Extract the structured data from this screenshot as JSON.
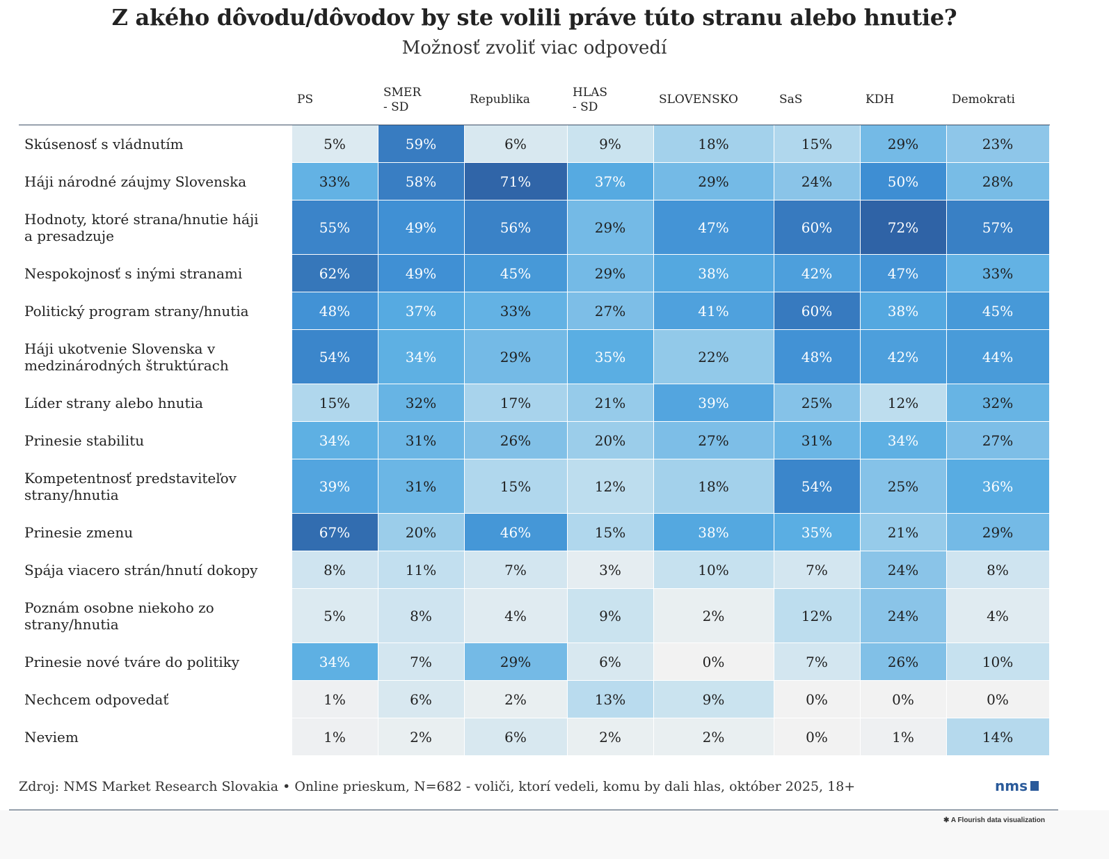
{
  "title": "Z akého dôvodu/dôvodov by ste volili práve túto stranu alebo hnutie?",
  "subtitle": "Možnosť zvoliť viac odpovedí",
  "chart_data": {
    "type": "heatmap",
    "title": "Z akého dôvodu/dôvodov by ste volili práve túto stranu alebo hnutie?",
    "subtitle": "Možnosť zvoliť viac odpovedí",
    "value_suffix": "%",
    "columns": [
      "PS",
      "SMER - SD",
      "Republika",
      "HLAS - SD",
      "SLOVENSKO",
      "SaS",
      "KDH",
      "Demokrati"
    ],
    "rows": [
      {
        "label": "Skúsenosť s vládnutím",
        "values": [
          5,
          59,
          6,
          9,
          18,
          15,
          29,
          23
        ]
      },
      {
        "label": "Háji národné záujmy Slovenska",
        "values": [
          33,
          58,
          71,
          37,
          29,
          24,
          50,
          28
        ]
      },
      {
        "label": "Hodnoty, ktoré strana/hnutie háji a presadzuje",
        "values": [
          55,
          49,
          56,
          29,
          47,
          60,
          72,
          57
        ]
      },
      {
        "label": "Nespokojnosť s inými stranami",
        "values": [
          62,
          49,
          45,
          29,
          38,
          42,
          47,
          33
        ]
      },
      {
        "label": "Politický program strany/hnutia",
        "values": [
          48,
          37,
          33,
          27,
          41,
          60,
          38,
          45
        ]
      },
      {
        "label": "Háji ukotvenie Slovenska v medzinárodných štruktúrach",
        "values": [
          54,
          34,
          29,
          35,
          22,
          48,
          42,
          44
        ]
      },
      {
        "label": "Líder strany alebo hnutia",
        "values": [
          15,
          32,
          17,
          21,
          39,
          25,
          12,
          32
        ]
      },
      {
        "label": "Prinesie stabilitu",
        "values": [
          34,
          31,
          26,
          20,
          27,
          31,
          34,
          27
        ]
      },
      {
        "label": "Kompetentnosť predstaviteľov strany/hnutia",
        "values": [
          39,
          31,
          15,
          12,
          18,
          54,
          25,
          36
        ]
      },
      {
        "label": "Prinesie zmenu",
        "values": [
          67,
          20,
          46,
          15,
          38,
          35,
          21,
          29
        ]
      },
      {
        "label": "Spája viacero strán/hnutí dokopy",
        "values": [
          8,
          11,
          7,
          3,
          10,
          7,
          24,
          8
        ]
      },
      {
        "label": "Poznám osobne niekoho zo strany/hnutia",
        "values": [
          5,
          8,
          4,
          9,
          2,
          12,
          24,
          4
        ]
      },
      {
        "label": "Prinesie nové tváre do politiky",
        "values": [
          34,
          7,
          29,
          6,
          0,
          7,
          26,
          10
        ]
      },
      {
        "label": "Nechcem odpovedať",
        "values": [
          1,
          6,
          2,
          13,
          9,
          0,
          0,
          0
        ]
      },
      {
        "label": "Neviem",
        "values": [
          1,
          2,
          6,
          2,
          2,
          0,
          1,
          14
        ]
      }
    ],
    "color_scale": [
      "#f2f2f2",
      "#c6e1ef",
      "#5aaee3",
      "#3e8ed3",
      "#2f63a6"
    ]
  },
  "footer": {
    "source": "Zdroj: NMS Market Research Slovakia • Online prieskum, N=682 - voliči, ktorí vedeli, komu by dali hlas, október 2025, 18+",
    "brand": "nms",
    "credit": "A Flourish data visualization"
  }
}
